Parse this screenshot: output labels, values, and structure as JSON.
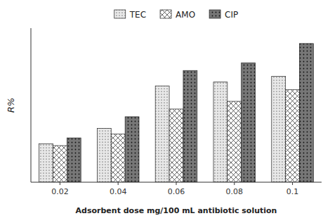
{
  "chart_data": {
    "type": "bar",
    "categories": [
      "0.02",
      "0.04",
      "0.06",
      "0.08",
      "0.1"
    ],
    "series": [
      {
        "name": "TEC",
        "color": "#e8e8e8",
        "values": [
          20,
          28,
          50,
          52,
          55
        ]
      },
      {
        "name": "AMO",
        "color": "white",
        "values": [
          19,
          25,
          38,
          42,
          48
        ]
      },
      {
        "name": "CIP",
        "color": "#777777",
        "values": [
          23,
          34,
          58,
          62,
          72
        ]
      }
    ],
    "xlabel": "Adsorbent dose mg/100 mL antibiotic solution",
    "ylabel": "R%",
    "ylim": [
      0,
      80
    ],
    "yticks": [],
    "grid": false,
    "legend": "top",
    "tick_labels": "x"
  }
}
